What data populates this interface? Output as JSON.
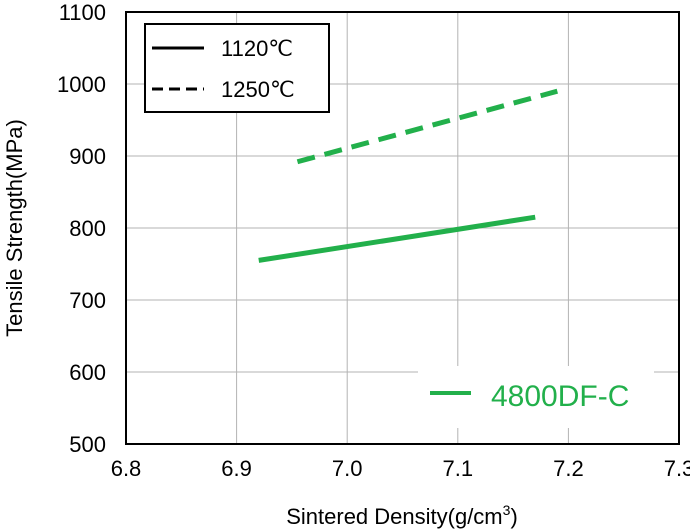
{
  "chart_data": {
    "type": "line",
    "xlabel": "Sintered Density(g/cm",
    "xlabel_sup": "3",
    "xlabel_close": ")",
    "ylabel": "Tensile Strength(MPa)",
    "xlim": [
      6.8,
      7.3
    ],
    "ylim": [
      500,
      1100
    ],
    "xticks": [
      "6.8",
      "6.9",
      "7.0",
      "7.1",
      "7.2",
      "7.3"
    ],
    "yticks": [
      "500",
      "600",
      "700",
      "800",
      "900",
      "1000",
      "1100"
    ],
    "grid": true,
    "color": "#22b04b",
    "series": [
      {
        "name": "1120℃",
        "style": "solid",
        "x": [
          6.92,
          7.17
        ],
        "y": [
          755,
          815
        ]
      },
      {
        "name": "1250℃",
        "style": "dashed",
        "x": [
          6.955,
          7.19
        ],
        "y": [
          892,
          990
        ]
      }
    ],
    "legend": {
      "placement": "top-left",
      "items": [
        "1120℃",
        "1250℃"
      ]
    },
    "annotation": {
      "label": "4800DF-C",
      "placement": "bottom-right"
    }
  }
}
